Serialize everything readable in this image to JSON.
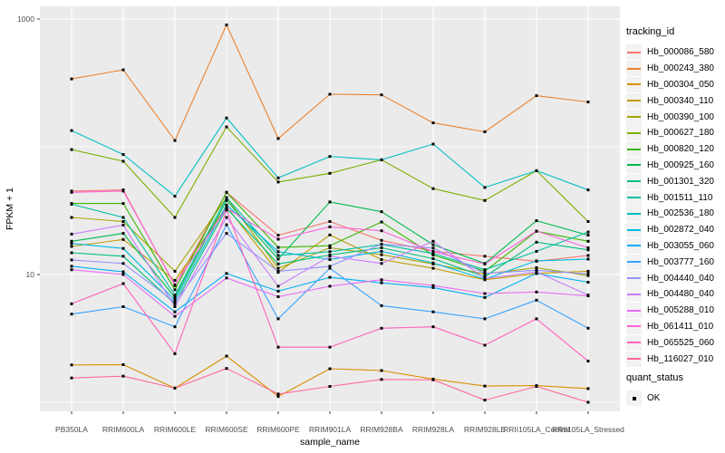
{
  "figure": {
    "background": "#FFFFFF",
    "panel_bg": "#EBEBEB",
    "grid_color": "#FFFFFF",
    "axis_text_color": "#4D4D4D",
    "axis_title_color": "#000000",
    "tick_color": "#333333",
    "point_color": "#000000",
    "legend_key_bg": "#F2F2F2"
  },
  "chart_data": {
    "type": "line",
    "title": "",
    "xlabel": "sample_name",
    "ylabel": "FPKM + 1",
    "y_scale": "log10",
    "ylim": [
      0.95,
      1150
    ],
    "y_ticks": [
      10,
      1000
    ],
    "y_tick_labels": [
      "10",
      "1000"
    ],
    "y_gridlines_major": [
      10,
      1000
    ],
    "y_gridlines_minor": [
      1,
      100
    ],
    "grid": true,
    "point_shape": "small-black-square",
    "legend": {
      "title": "tracking_id",
      "position": "right"
    },
    "legend2": {
      "title": "quant_status",
      "items": [
        {
          "label": "OK",
          "marker": "black-square"
        }
      ]
    },
    "categories": [
      "PB350LA",
      "RRIM600LA",
      "RRIM600LE",
      "RRIM600SE",
      "RRIM600PE",
      "RRIM901LA",
      "RRIM928BA",
      "RRIM928LA",
      "RRIM928LE",
      "RRII105LA_Control",
      "RRII105LA_Stressed"
    ],
    "series": [
      {
        "name": "Hb_000086_580",
        "color": "#F8766D",
        "values": [
          45,
          46,
          8.2,
          44,
          20.3,
          26,
          18.5,
          15.2,
          13.9,
          12.7,
          14.1
        ]
      },
      {
        "name": "Hb_000243_380",
        "color": "#EA8331",
        "values": [
          340,
          400,
          112,
          900,
          116,
          258,
          255,
          154,
          131,
          251,
          224
        ]
      },
      {
        "name": "Hb_000304_050",
        "color": "#D89000",
        "values": [
          1.96,
          1.97,
          1.29,
          2.3,
          1.11,
          1.83,
          1.77,
          1.52,
          1.34,
          1.35,
          1.28
        ]
      },
      {
        "name": "Hb_000340_110",
        "color": "#C09B00",
        "values": [
          16.6,
          18.8,
          9.0,
          34,
          10.4,
          20.4,
          13.1,
          11.2,
          9.1,
          10.2,
          10.6
        ]
      },
      {
        "name": "Hb_000390_100",
        "color": "#A3A500",
        "values": [
          28,
          26,
          10.6,
          40,
          11.2,
          16.2,
          14.3,
          12.1,
          10.1,
          11.3,
          9.8
        ]
      },
      {
        "name": "Hb_000627_180",
        "color": "#7CAE00",
        "values": [
          95,
          77,
          28,
          143,
          53,
          62,
          79,
          47,
          38,
          65,
          26
        ]
      },
      {
        "name": "Hb_000820_120",
        "color": "#39B600",
        "values": [
          36,
          36,
          7.6,
          44,
          16.3,
          16.8,
          25.8,
          14.2,
          10.6,
          21.8,
          18.2
        ]
      },
      {
        "name": "Hb_000925_160",
        "color": "#00BB4E",
        "values": [
          18.2,
          21,
          6.6,
          38,
          13.2,
          37,
          31,
          17.1,
          12.2,
          26.4,
          20.3
        ]
      },
      {
        "name": "Hb_001301_320",
        "color": "#00BF7D",
        "values": [
          14.8,
          13.9,
          5.9,
          33,
          12.1,
          14.2,
          16.2,
          13.3,
          9.6,
          17.9,
          15.6
        ]
      },
      {
        "name": "Hb_001511_110",
        "color": "#00C1A3",
        "values": [
          35.5,
          28,
          6.9,
          40,
          14.1,
          15.1,
          17.2,
          14.6,
          10.9,
          15.2,
          21.5
        ]
      },
      {
        "name": "Hb_002536_180",
        "color": "#00BFC4",
        "values": [
          134,
          87,
          41,
          168,
          57,
          84,
          79,
          105,
          48,
          65,
          46
        ]
      },
      {
        "name": "Hb_002872_040",
        "color": "#00BAE0",
        "values": [
          17.5,
          16,
          6.3,
          35,
          15.1,
          13.1,
          15.2,
          12.3,
          9.2,
          12.8,
          13.2
        ]
      },
      {
        "name": "Hb_003055_060",
        "color": "#00B0F6",
        "values": [
          11.6,
          10.5,
          5.1,
          10.2,
          7.4,
          9.5,
          8.6,
          7.9,
          6.6,
          10.2,
          8.7
        ]
      },
      {
        "name": "Hb_003777_160",
        "color": "#35A2FF",
        "values": [
          4.9,
          5.6,
          3.9,
          24.5,
          4.5,
          11.2,
          5.7,
          5.1,
          4.5,
          6.3,
          3.8
        ]
      },
      {
        "name": "Hb_004440_040",
        "color": "#9590FF",
        "values": [
          13,
          12.2,
          6.1,
          21,
          10.6,
          11.6,
          17.3,
          16.1,
          10.2,
          10.8,
          10.1
        ]
      },
      {
        "name": "Hb_004480_040",
        "color": "#C77CFF",
        "values": [
          20.7,
          24.4,
          5.6,
          28,
          8.1,
          13.9,
          12.2,
          18.2,
          9.3,
          10.5,
          6.9
        ]
      },
      {
        "name": "Hb_005288_010",
        "color": "#E76BF3",
        "values": [
          10.9,
          10,
          4.7,
          9.4,
          6.7,
          8.1,
          9.1,
          8.2,
          7.1,
          7.3,
          6.8
        ]
      },
      {
        "name": "Hb_061411_010",
        "color": "#FA62DB",
        "values": [
          44,
          45,
          8.3,
          33,
          18.9,
          23.6,
          22,
          15.1,
          12.1,
          21.9,
          16.2
        ]
      },
      {
        "name": "Hb_065525_060",
        "color": "#FF62BC",
        "values": [
          5.9,
          8.5,
          2.4,
          32,
          2.7,
          2.7,
          3.8,
          3.9,
          2.8,
          4.5,
          2.1
        ]
      },
      {
        "name": "Hb_116027_010",
        "color": "#FF6A98",
        "values": [
          1.55,
          1.6,
          1.29,
          1.84,
          1.16,
          1.33,
          1.51,
          1.5,
          1.04,
          1.33,
          1.0
        ]
      }
    ]
  }
}
